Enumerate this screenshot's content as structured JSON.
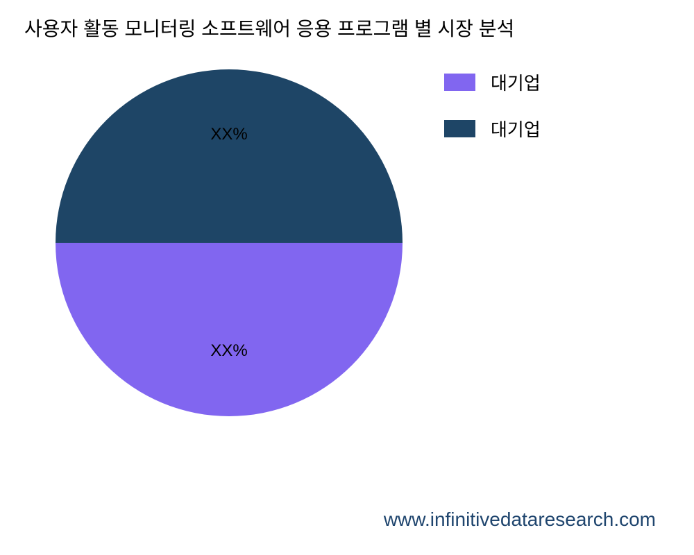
{
  "chart": {
    "type": "pie",
    "title": "사용자 활동 모니터링 소프트웨어 응용 프로그램 별 시장 분석",
    "title_fontsize": 28,
    "title_color": "#000000",
    "background_color": "#ffffff",
    "slices": [
      {
        "label": "대기업",
        "value": 50,
        "display_label": "XX%",
        "color": "#1e4566",
        "start_angle": 0,
        "end_angle": 180
      },
      {
        "label": "대기업",
        "value": 50,
        "display_label": "XX%",
        "color": "#8166f0",
        "start_angle": 180,
        "end_angle": 360
      }
    ],
    "slice_label_fontsize": 24,
    "slice_label_color": "#000000",
    "legend": {
      "position": "right",
      "items": [
        {
          "label": "대기업",
          "color": "#8166f0"
        },
        {
          "label": "대기업",
          "color": "#1e4566"
        }
      ],
      "swatch_width": 45,
      "swatch_height": 25,
      "label_fontsize": 26,
      "label_color": "#000000"
    },
    "pie_radius": 250
  },
  "footer": {
    "text": "www.infinitivedataresearch.com",
    "fontsize": 28,
    "color": "#1f456e"
  }
}
